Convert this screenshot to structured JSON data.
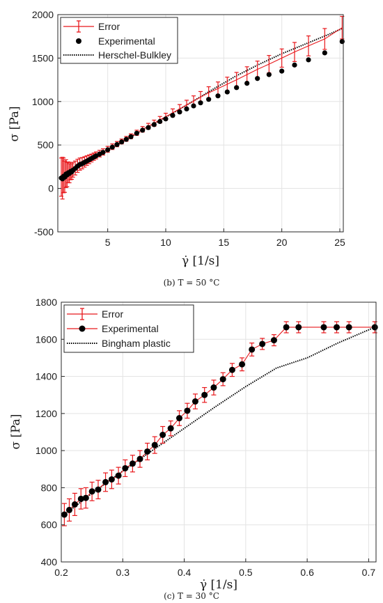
{
  "chart_data": [
    {
      "type": "scatter",
      "xlabel": "γ̇ [1/s]",
      "ylabel": "σ [Pa]",
      "xlim": [
        0.7,
        25.3
      ],
      "ylim": [
        -500,
        2000
      ],
      "xticks": [
        5,
        10,
        15,
        20,
        25
      ],
      "yticks": [
        -500,
        0,
        500,
        1000,
        1500,
        2000
      ],
      "grid": true,
      "legend_position": "top-left",
      "caption": "(b) T = 50 °C",
      "series": [
        {
          "name": "Error",
          "kind": "errorbar",
          "color": "#e8171b",
          "x": [
            1.0,
            1.1,
            1.2,
            1.3,
            1.4,
            1.5,
            1.6,
            1.7,
            1.8,
            1.9,
            2.0,
            2.2,
            2.4,
            2.6,
            2.8,
            3.0,
            3.2,
            3.4,
            3.6,
            3.8,
            4.0,
            4.3,
            4.6,
            5.0,
            5.4,
            5.8,
            6.2,
            6.6,
            7.0,
            7.5,
            8.0,
            8.5,
            9.0,
            9.5,
            10.0,
            10.6,
            11.2,
            11.8,
            12.4,
            13.0,
            13.7,
            14.5,
            15.3,
            16.1,
            17.0,
            17.9,
            18.9,
            20.0,
            21.1,
            22.3,
            23.7,
            25.2
          ],
          "y": [
            130,
            118,
            150,
            135,
            170,
            160,
            185,
            175,
            200,
            195,
            215,
            235,
            260,
            280,
            290,
            305,
            320,
            335,
            350,
            365,
            380,
            400,
            420,
            450,
            480,
            510,
            540,
            570,
            600,
            640,
            680,
            715,
            750,
            790,
            825,
            870,
            915,
            960,
            1005,
            1050,
            1100,
            1150,
            1200,
            1250,
            1310,
            1370,
            1430,
            1500,
            1570,
            1640,
            1720,
            1850
          ],
          "error": [
            220,
            240,
            200,
            180,
            160,
            140,
            120,
            110,
            100,
            90,
            85,
            80,
            75,
            70,
            65,
            60,
            55,
            50,
            45,
            42,
            40,
            38,
            36,
            34,
            32,
            30,
            28,
            28,
            28,
            30,
            32,
            34,
            36,
            38,
            40,
            45,
            50,
            55,
            60,
            65,
            70,
            75,
            80,
            85,
            90,
            95,
            100,
            105,
            110,
            115,
            120,
            130
          ]
        },
        {
          "name": "Experimental",
          "kind": "markers",
          "color": "#000000",
          "x": [
            1.0,
            1.1,
            1.2,
            1.3,
            1.4,
            1.5,
            1.6,
            1.7,
            1.8,
            1.9,
            2.0,
            2.2,
            2.4,
            2.6,
            2.8,
            3.0,
            3.2,
            3.4,
            3.6,
            3.8,
            4.0,
            4.3,
            4.6,
            5.0,
            5.4,
            5.8,
            6.2,
            6.6,
            7.0,
            7.5,
            8.0,
            8.5,
            9.0,
            9.5,
            10.0,
            10.6,
            11.2,
            11.8,
            12.4,
            13.0,
            13.7,
            14.5,
            15.3,
            16.1,
            17.0,
            17.9,
            18.9,
            20.0,
            21.1,
            22.3,
            23.7,
            25.2
          ],
          "y": [
            120,
            110,
            140,
            130,
            165,
            155,
            180,
            172,
            195,
            190,
            210,
            230,
            255,
            275,
            285,
            300,
            315,
            330,
            345,
            360,
            375,
            395,
            415,
            445,
            475,
            505,
            535,
            565,
            595,
            635,
            670,
            700,
            735,
            770,
            800,
            840,
            880,
            915,
            950,
            985,
            1025,
            1065,
            1110,
            1160,
            1210,
            1265,
            1310,
            1350,
            1420,
            1480,
            1560,
            1690
          ]
        },
        {
          "name": "Herschel-Bulkley",
          "kind": "line",
          "style": "dotted",
          "color": "#000000",
          "x": [
            1.0,
            2.0,
            3.0,
            4.0,
            5.0,
            6.0,
            8.0,
            10.0,
            12.0,
            14.0,
            16.0,
            18.0,
            20.0,
            22.0,
            24.0,
            25.2
          ],
          "y": [
            120,
            215,
            300,
            380,
            450,
            520,
            670,
            820,
            975,
            1135,
            1290,
            1425,
            1550,
            1660,
            1770,
            1840
          ]
        }
      ]
    },
    {
      "type": "scatter",
      "xlabel": "γ̇ [1/s]",
      "ylabel": "σ [Pa]",
      "xlim": [
        0.2,
        0.712
      ],
      "ylim": [
        400,
        1800
      ],
      "xticks": [
        0.2,
        0.3,
        0.4,
        0.5,
        0.6,
        0.7
      ],
      "yticks": [
        400,
        600,
        800,
        1000,
        1200,
        1400,
        1600,
        1800
      ],
      "grid": true,
      "legend_position": "top-left",
      "caption": "(c) T = 30 °C",
      "series": [
        {
          "name": "Error",
          "kind": "errorbar",
          "color": "#e8171b",
          "x": [
            0.205,
            0.213,
            0.222,
            0.232,
            0.24,
            0.25,
            0.26,
            0.272,
            0.282,
            0.293,
            0.304,
            0.316,
            0.328,
            0.34,
            0.352,
            0.365,
            0.378,
            0.392,
            0.405,
            0.418,
            0.433,
            0.448,
            0.463,
            0.478,
            0.494,
            0.51,
            0.527,
            0.546,
            0.566,
            0.586,
            0.627,
            0.648,
            0.668,
            0.71
          ],
          "y": [
            655,
            680,
            710,
            740,
            745,
            780,
            790,
            830,
            845,
            865,
            905,
            930,
            955,
            995,
            1030,
            1085,
            1120,
            1175,
            1215,
            1265,
            1300,
            1340,
            1385,
            1435,
            1465,
            1545,
            1575,
            1595,
            1665,
            1665,
            1665,
            1665,
            1665,
            1665
          ],
          "error": [
            60,
            60,
            60,
            55,
            55,
            50,
            50,
            50,
            50,
            45,
            45,
            45,
            45,
            45,
            45,
            45,
            40,
            40,
            40,
            40,
            40,
            40,
            35,
            35,
            35,
            35,
            30,
            30,
            30,
            30,
            30,
            30,
            30,
            30
          ]
        },
        {
          "name": "Experimental",
          "kind": "markers",
          "color": "#000000",
          "x": [
            0.205,
            0.213,
            0.222,
            0.232,
            0.24,
            0.25,
            0.26,
            0.272,
            0.282,
            0.293,
            0.304,
            0.316,
            0.328,
            0.34,
            0.352,
            0.365,
            0.378,
            0.392,
            0.405,
            0.418,
            0.433,
            0.448,
            0.463,
            0.478,
            0.494,
            0.51,
            0.527,
            0.546,
            0.566,
            0.586,
            0.627,
            0.648,
            0.668,
            0.71
          ],
          "y": [
            655,
            680,
            710,
            740,
            745,
            780,
            790,
            830,
            845,
            865,
            905,
            930,
            955,
            995,
            1030,
            1085,
            1120,
            1175,
            1215,
            1265,
            1300,
            1340,
            1385,
            1435,
            1465,
            1545,
            1575,
            1595,
            1665,
            1665,
            1665,
            1665,
            1665,
            1665
          ]
        },
        {
          "name": "Bingham plastic",
          "kind": "line",
          "style": "dotted",
          "color": "#000000",
          "x": [
            0.205,
            0.25,
            0.3,
            0.35,
            0.4,
            0.45,
            0.5,
            0.55,
            0.6,
            0.65,
            0.71
          ],
          "y": [
            655,
            770,
            890,
            1005,
            1120,
            1235,
            1345,
            1445,
            1500,
            1580,
            1665
          ]
        }
      ]
    }
  ]
}
